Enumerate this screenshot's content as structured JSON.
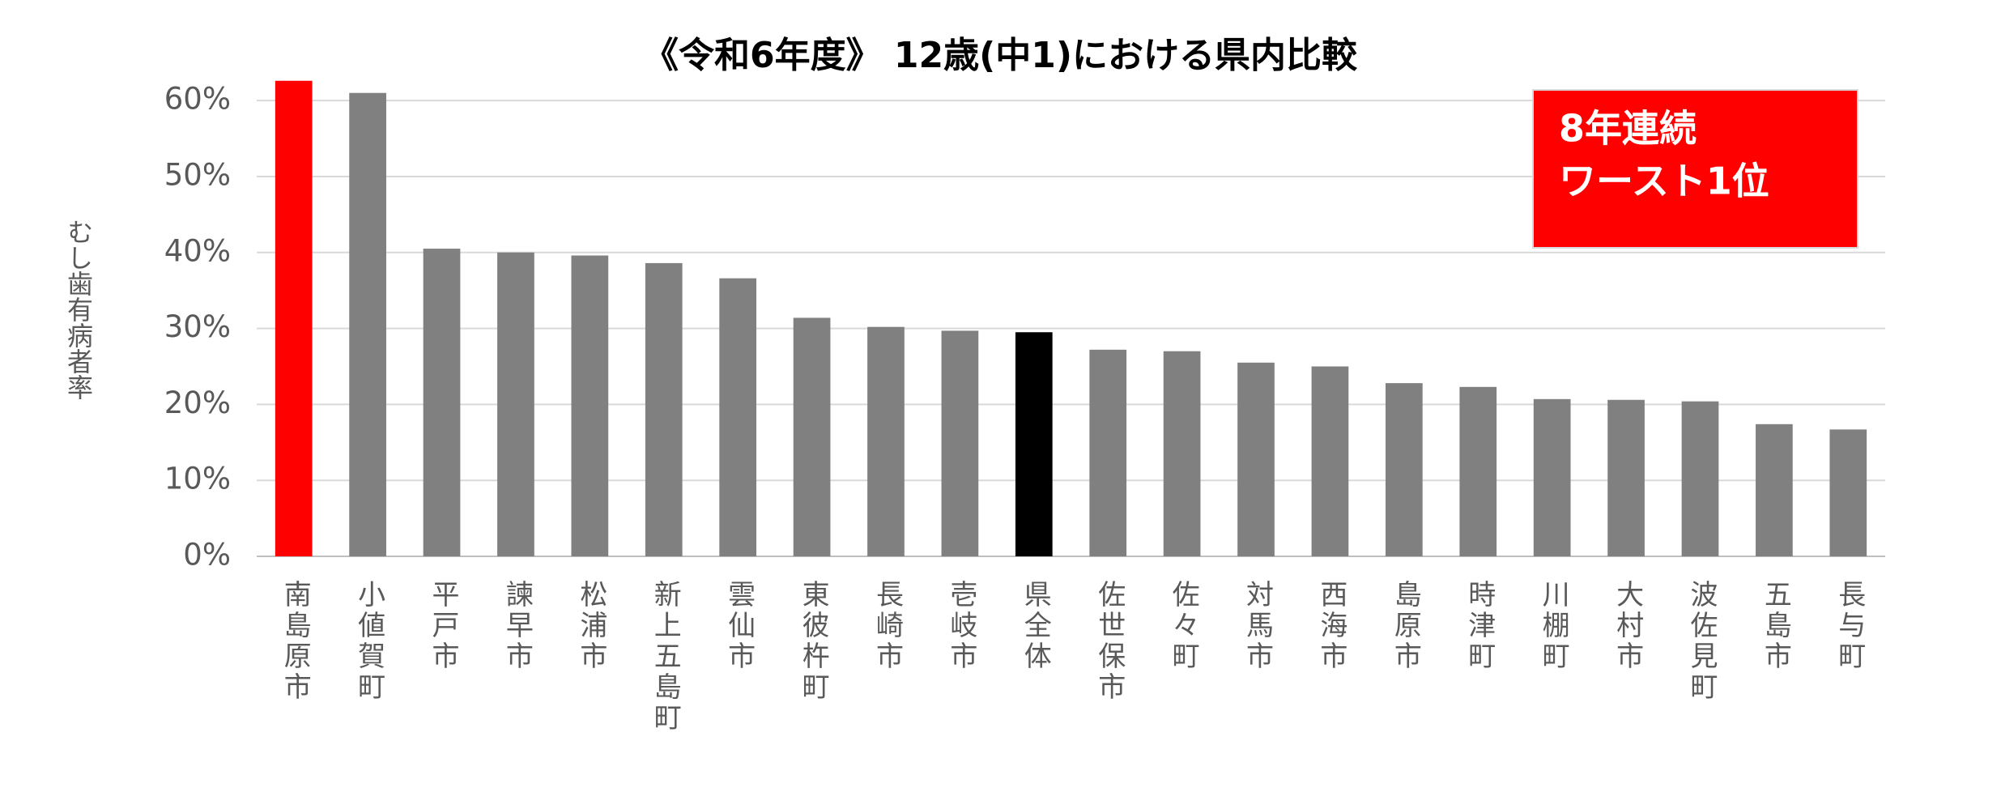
{
  "chart_data": {
    "type": "bar",
    "title": "《令和6年度》 12歳(中1)における県内比較",
    "y_label": "むし歯有病者率",
    "categories": [
      "南島原市",
      "小値賀町",
      "平戸市",
      "諫早市",
      "松浦市",
      "新上五島町",
      "雲仙市",
      "東彼杵町",
      "長崎市",
      "壱岐市",
      "県全体",
      "佐世保市",
      "佐々町",
      "対馬市",
      "西海市",
      "島原市",
      "時津町",
      "川棚町",
      "大村市",
      "波佐見町",
      "五島市",
      "長与町"
    ],
    "values": [
      62.6,
      61.0,
      40.5,
      40.0,
      39.6,
      38.6,
      36.6,
      31.4,
      30.2,
      29.7,
      29.5,
      27.2,
      27.0,
      25.5,
      25.0,
      22.8,
      22.3,
      20.7,
      20.6,
      20.4,
      17.4,
      16.7
    ],
    "colors": [
      "#ff0000",
      "#808080",
      "#808080",
      "#808080",
      "#808080",
      "#808080",
      "#808080",
      "#808080",
      "#808080",
      "#808080",
      "#000000",
      "#808080",
      "#808080",
      "#808080",
      "#808080",
      "#808080",
      "#808080",
      "#808080",
      "#808080",
      "#808080",
      "#808080",
      "#808080"
    ],
    "ylim": [
      0,
      63
    ],
    "yticks": [
      {
        "value": 0,
        "label": "0%"
      },
      {
        "value": 10,
        "label": "10%"
      },
      {
        "value": 20,
        "label": "20%"
      },
      {
        "value": 30,
        "label": "30%"
      },
      {
        "value": 40,
        "label": "40%"
      },
      {
        "value": 50,
        "label": "50%"
      },
      {
        "value": 60,
        "label": "60%"
      }
    ],
    "grid": true,
    "annotation": {
      "lines": [
        "8年連続",
        "ワースト1位"
      ],
      "color": "#ff0000"
    }
  }
}
